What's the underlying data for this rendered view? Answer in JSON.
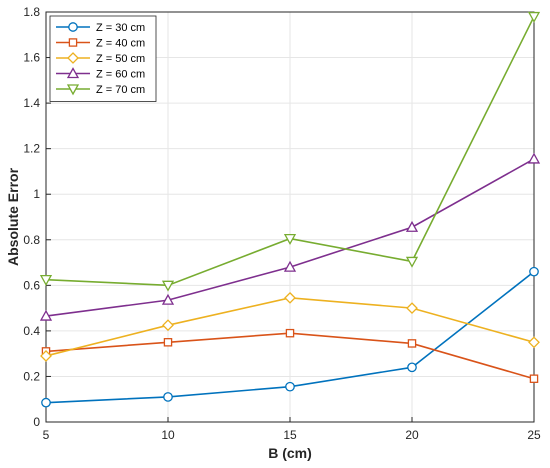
{
  "chart_data": {
    "type": "line",
    "title": "",
    "xlabel": "B (cm)",
    "ylabel": "Absolute Error",
    "x": [
      5,
      10,
      15,
      20,
      25
    ],
    "xlim": [
      5,
      25
    ],
    "ylim": [
      0,
      1.8
    ],
    "xticks": [
      "5",
      "10",
      "15",
      "20",
      "25"
    ],
    "yticks": [
      "0",
      "0.2",
      "0.4",
      "0.6",
      "0.8",
      "1",
      "1.2",
      "1.4",
      "1.6",
      "1.8"
    ],
    "grid": true,
    "legend_position": "top-left",
    "series": [
      {
        "name": "Z = 30 cm",
        "color": "#0072BD",
        "marker": "circle",
        "values": [
          0.085,
          0.11,
          0.155,
          0.24,
          0.66
        ]
      },
      {
        "name": "Z = 40 cm",
        "color": "#D95319",
        "marker": "square",
        "values": [
          0.31,
          0.35,
          0.39,
          0.345,
          0.19
        ]
      },
      {
        "name": "Z = 50 cm",
        "color": "#EDB120",
        "marker": "diamond",
        "values": [
          0.29,
          0.425,
          0.545,
          0.5,
          0.35
        ]
      },
      {
        "name": "Z = 60 cm",
        "color": "#7E2F8E",
        "marker": "triangle-up",
        "values": [
          0.465,
          0.535,
          0.68,
          0.855,
          1.155
        ]
      },
      {
        "name": "Z = 70 cm",
        "color": "#77AC30",
        "marker": "triangle-down",
        "values": [
          0.625,
          0.6,
          0.805,
          0.705,
          1.78
        ]
      }
    ]
  }
}
